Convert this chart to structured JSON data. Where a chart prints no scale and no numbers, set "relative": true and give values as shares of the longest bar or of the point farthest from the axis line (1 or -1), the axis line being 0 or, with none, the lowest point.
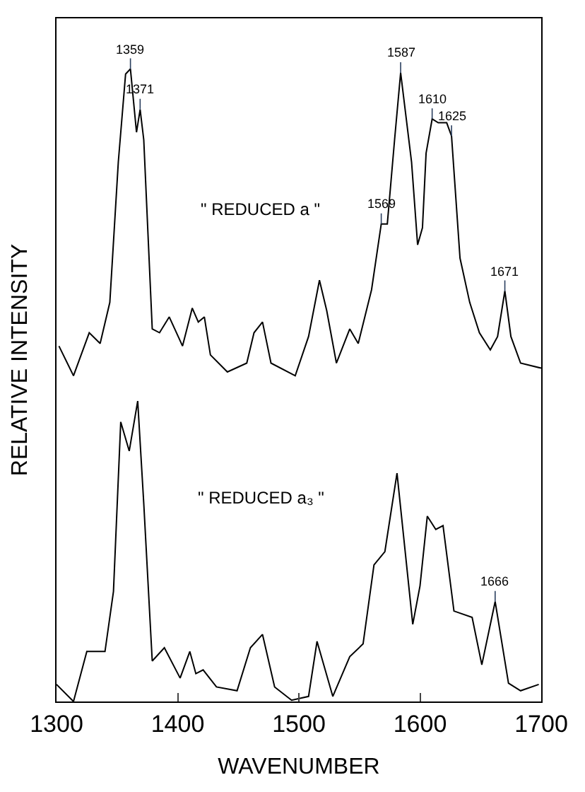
{
  "chart_data": {
    "type": "line",
    "xlabel": "WAVENUMBER",
    "ylabel": "RELATIVE INTENSITY",
    "relative": true,
    "xlim": [
      1300,
      1700
    ],
    "xticks": [
      1300,
      1400,
      1500,
      1600,
      1700
    ],
    "tick_labels": "x",
    "marker": "none",
    "line_style": "solid",
    "series": [
      {
        "color": "#000000",
        "x": [
          1302,
          1314,
          1327,
          1336,
          1344,
          1351,
          1357,
          1361,
          1366,
          1369,
          1372,
          1379,
          1385,
          1393,
          1404,
          1412,
          1417,
          1422,
          1427,
          1441,
          1457,
          1463,
          1470,
          1477,
          1497,
          1508,
          1517,
          1523,
          1531,
          1542,
          1549,
          1560,
          1568,
          1573,
          1579,
          1584,
          1593,
          1598,
          1602,
          1605,
          1610,
          1615,
          1622,
          1626,
          1633,
          1641,
          1649,
          1658,
          1664,
          1670,
          1675,
          1683,
          1700
        ],
        "values": [
          0.562,
          0.515,
          0.583,
          0.566,
          0.631,
          0.853,
          0.992,
          1.0,
          0.9,
          0.936,
          0.888,
          0.589,
          0.583,
          0.608,
          0.562,
          0.622,
          0.6,
          0.608,
          0.548,
          0.521,
          0.535,
          0.583,
          0.6,
          0.535,
          0.515,
          0.577,
          0.666,
          0.618,
          0.535,
          0.589,
          0.566,
          0.651,
          0.755,
          0.755,
          0.888,
          0.994,
          0.853,
          0.722,
          0.749,
          0.867,
          0.921,
          0.915,
          0.915,
          0.894,
          0.701,
          0.631,
          0.583,
          0.556,
          0.577,
          0.649,
          0.577,
          0.535,
          0.527
        ]
      },
      {
        "color": "#000000",
        "x": [
          1300,
          1314,
          1325,
          1340,
          1347,
          1353,
          1360,
          1367,
          1372,
          1379,
          1389,
          1402,
          1410,
          1415,
          1421,
          1432,
          1449,
          1460,
          1470,
          1480,
          1494,
          1508,
          1515,
          1528,
          1542,
          1553,
          1562,
          1571,
          1581,
          1594,
          1600,
          1606,
          1613,
          1619,
          1628,
          1643,
          1651,
          1662,
          1673,
          1683,
          1698
        ],
        "values": [
          0.027,
          0,
          0.079,
          0.079,
          0.174,
          0.442,
          0.396,
          0.475,
          0.313,
          0.064,
          0.085,
          0.037,
          0.079,
          0.044,
          0.05,
          0.023,
          0.017,
          0.085,
          0.106,
          0.023,
          0.002,
          0.008,
          0.095,
          0.008,
          0.071,
          0.091,
          0.216,
          0.237,
          0.361,
          0.122,
          0.183,
          0.293,
          0.272,
          0.278,
          0.143,
          0.133,
          0.058,
          0.158,
          0.029,
          0.017,
          0.027
        ]
      }
    ],
    "annotations": [
      {
        "text": "1359",
        "x": 1361,
        "y": 1.0
      },
      {
        "text": "1371",
        "x": 1369,
        "y": 0.936
      },
      {
        "text": "1569",
        "x": 1568,
        "y": 0.755
      },
      {
        "text": "1587",
        "x": 1584,
        "y": 0.994
      },
      {
        "text": "1610",
        "x": 1610,
        "y": 0.921
      },
      {
        "text": "1625",
        "x": 1626,
        "y": 0.894
      },
      {
        "text": "1671",
        "x": 1670,
        "y": 0.649
      },
      {
        "text": "1666",
        "x": 1662,
        "y": 0.158
      },
      "\" REDUCED a \"",
      "\" REDUCED a₃ \""
    ]
  }
}
